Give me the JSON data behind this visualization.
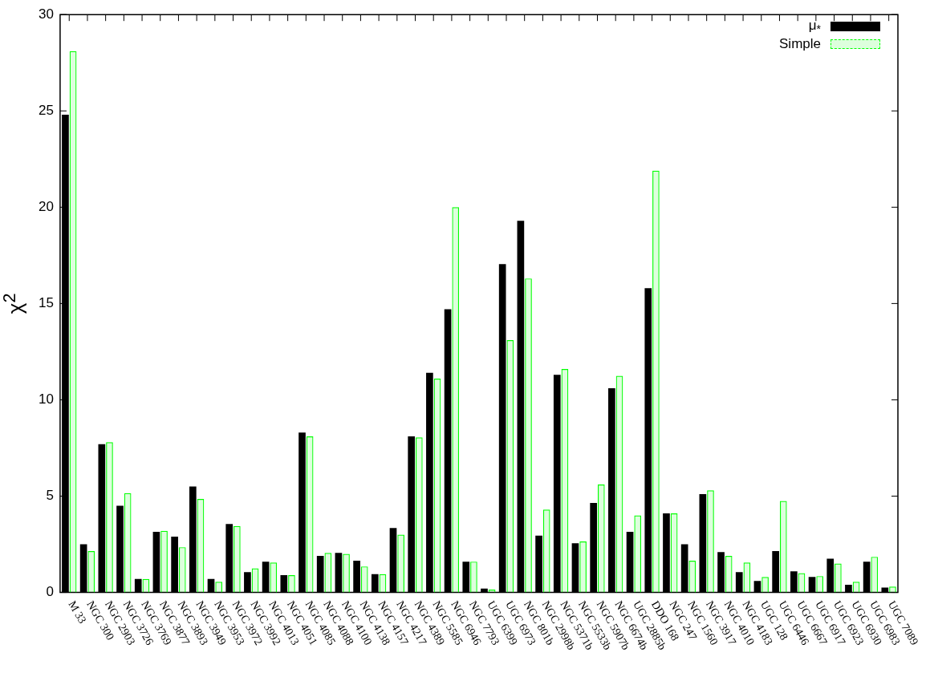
{
  "chart_data": {
    "type": "bar",
    "ylabel": "χ$^{2}$",
    "categories": [
      "M 33",
      "NGC 300",
      "NGC 2903",
      "NGC 3726",
      "NGC 3769",
      "NGC 3877",
      "NGC 3893",
      "NGC 3949",
      "NGC 3953",
      "NGC 3972",
      "NGC 3992",
      "NGC 4013",
      "NGC 4051",
      "NGC 4085",
      "NGC 4088",
      "NGC 4100",
      "NGC 4138",
      "NGC 4157",
      "NGC 4217",
      "NGC 4389",
      "NGC 5585",
      "NGC 6946",
      "NGC 7793",
      "UGC 6399",
      "UGC 6973",
      "NGC 801b",
      "NGC 2998b",
      "NGC 5371b",
      "NGC 5533b",
      "NGC 5907b",
      "NGC 6674b",
      "UGC 2885b",
      "DDO 168",
      "NGC 247",
      "NGC 1560",
      "NGC 3917",
      "NGC 4010",
      "NGC 4183",
      "UGC 128",
      "UGC 6446",
      "UGC 6667",
      "UGC 6917",
      "UGC 6923",
      "UGC 6930",
      "UGC 6983",
      "UGC 7089"
    ],
    "series": [
      {
        "name": "μ$_{*}$",
        "color": "#000000",
        "values": [
          24.8,
          2.5,
          7.7,
          4.5,
          0.7,
          3.15,
          2.9,
          5.5,
          0.7,
          3.55,
          1.05,
          1.6,
          0.9,
          8.3,
          1.9,
          2.05,
          1.65,
          0.95,
          3.35,
          8.1,
          11.4,
          14.7,
          1.6,
          0.2,
          17.05,
          19.3,
          2.95,
          11.3,
          2.55,
          4.65,
          10.6,
          3.15,
          15.8,
          4.1,
          2.5,
          5.1,
          2.1,
          1.05,
          0.6,
          2.15,
          1.1,
          0.8,
          1.75,
          0.4,
          1.6,
          0.25
        ]
      },
      {
        "name": "Simple",
        "color": "#00ff00",
        "values": [
          28.1,
          2.15,
          7.8,
          5.15,
          0.7,
          3.2,
          2.35,
          4.85,
          0.55,
          3.45,
          1.25,
          1.55,
          0.9,
          8.1,
          2.05,
          2.0,
          1.35,
          0.95,
          3.0,
          8.05,
          11.1,
          20.0,
          1.6,
          0.15,
          13.1,
          16.3,
          4.3,
          11.6,
          2.65,
          5.6,
          11.25,
          4.0,
          21.9,
          4.1,
          1.65,
          5.3,
          1.9,
          1.55,
          0.8,
          4.75,
          1.0,
          0.85,
          1.5,
          0.55,
          1.85,
          0.3
        ]
      }
    ],
    "ylim": [
      0,
      30
    ],
    "yticks": [
      0,
      5,
      10,
      15,
      20,
      25,
      30
    ],
    "grid": false,
    "legend": "top right"
  }
}
